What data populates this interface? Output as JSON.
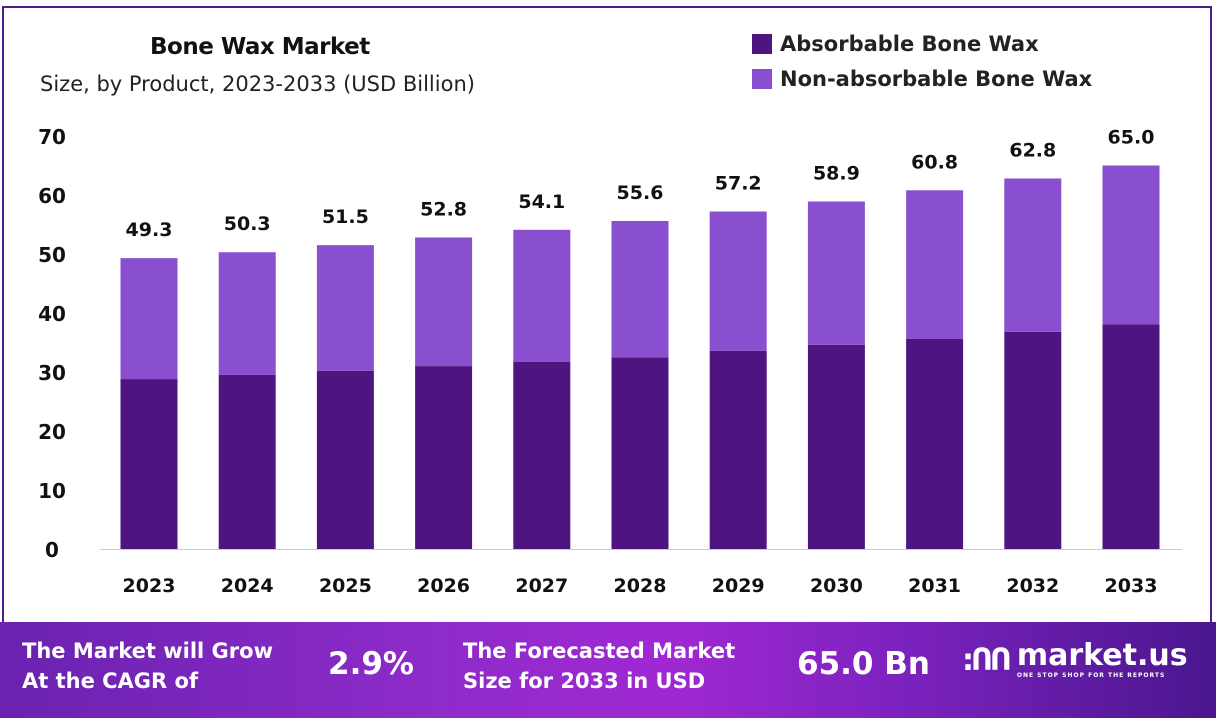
{
  "chart_data": {
    "type": "bar",
    "stacked": true,
    "title": "Bone Wax Market",
    "subtitle": "Size, by Product, 2023-2033 (USD Billion)",
    "xlabel": "",
    "ylabel": "",
    "ylim": [
      0,
      70
    ],
    "yticks": [
      0,
      10,
      20,
      30,
      40,
      50,
      60,
      70
    ],
    "grid": false,
    "legend_position": "top-right",
    "categories": [
      "2023",
      "2024",
      "2025",
      "2026",
      "2027",
      "2028",
      "2029",
      "2030",
      "2031",
      "2032",
      "2033"
    ],
    "series": [
      {
        "name": "Absorbable Bone Wax",
        "color": "#4e1580",
        "values": [
          28.8,
          29.5,
          30.2,
          31.0,
          31.7,
          32.5,
          33.6,
          34.6,
          35.6,
          36.8,
          38.1
        ]
      },
      {
        "name": "Non-absorbable Bone Wax",
        "color": "#8a4fcf",
        "values": [
          20.5,
          20.8,
          21.3,
          21.8,
          22.4,
          23.1,
          23.6,
          24.3,
          25.2,
          26.0,
          26.9
        ]
      }
    ],
    "totals": [
      "49.3",
      "50.3",
      "51.5",
      "52.8",
      "54.1",
      "55.6",
      "57.2",
      "58.9",
      "60.8",
      "62.8",
      "65.0"
    ]
  },
  "footer": {
    "cagr_label_1": "The Market will Grow",
    "cagr_label_2": "At the CAGR of",
    "cagr_value": "2.9%",
    "forecast_label_1": "The Forecasted Market",
    "forecast_label_2": "Size for 2033 in USD",
    "forecast_value": "65.0 Bn",
    "brand": "market.us",
    "tagline": "ONE STOP SHOP FOR THE REPORTS"
  }
}
